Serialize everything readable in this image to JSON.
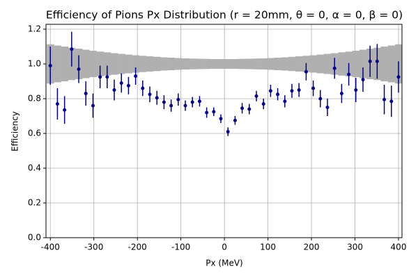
{
  "chart_data": {
    "type": "errorbar",
    "title": "Efficiency of Pions Px Distribution (r = 20mm, θ = 0, α = 0, β = 0)",
    "xlabel": "Px (MeV)",
    "ylabel": "Efficiency",
    "x": [
      -400,
      -383.7,
      -367.3,
      -351,
      -334.7,
      -318.4,
      -302,
      -285.7,
      -269.4,
      -253.1,
      -236.7,
      -220.4,
      -204.1,
      -187.8,
      -171.4,
      -155.1,
      -138.8,
      -122.4,
      -106.1,
      -89.8,
      -73.5,
      -57.1,
      -40.8,
      -24.5,
      -8.2,
      8.2,
      24.5,
      40.8,
      57.1,
      73.5,
      89.8,
      106.1,
      122.4,
      138.8,
      155.1,
      171.4,
      187.8,
      204.1,
      220.4,
      236.7,
      253.1,
      269.4,
      285.7,
      302,
      318.4,
      334.7,
      351,
      367.3,
      383.7,
      400
    ],
    "values": [
      0.99,
      0.77,
      0.735,
      1.085,
      0.97,
      0.83,
      0.76,
      0.925,
      0.925,
      0.85,
      0.89,
      0.875,
      0.93,
      0.86,
      0.825,
      0.805,
      0.78,
      0.76,
      0.795,
      0.76,
      0.78,
      0.785,
      0.72,
      0.725,
      0.685,
      0.61,
      0.675,
      0.745,
      0.74,
      0.815,
      0.77,
      0.845,
      0.825,
      0.785,
      0.845,
      0.85,
      0.955,
      0.86,
      0.8,
      0.75,
      0.975,
      0.83,
      0.94,
      0.85,
      0.91,
      1.015,
      1.015,
      0.795,
      0.785,
      0.925
    ],
    "errors": [
      0.11,
      0.09,
      0.08,
      0.1,
      0.08,
      0.07,
      0.07,
      0.065,
      0.065,
      0.06,
      0.055,
      0.05,
      0.05,
      0.045,
      0.045,
      0.04,
      0.04,
      0.035,
      0.035,
      0.03,
      0.03,
      0.03,
      0.03,
      0.025,
      0.025,
      0.025,
      0.025,
      0.03,
      0.03,
      0.03,
      0.03,
      0.035,
      0.035,
      0.035,
      0.04,
      0.04,
      0.05,
      0.045,
      0.05,
      0.05,
      0.06,
      0.055,
      0.065,
      0.07,
      0.07,
      0.09,
      0.1,
      0.085,
      0.09,
      0.09
    ],
    "color": "#00008b",
    "band": {
      "color": "#b0b0b0",
      "upper": [
        1.113,
        1.106,
        1.1,
        1.093,
        1.088,
        1.082,
        1.076,
        1.071,
        1.067,
        1.062,
        1.058,
        1.054,
        1.05,
        1.047,
        1.044,
        1.041,
        1.038,
        1.036,
        1.034,
        1.032,
        1.031,
        1.03,
        1.029,
        1.028,
        1.028,
        1.028,
        1.028,
        1.029,
        1.03,
        1.031,
        1.032,
        1.034,
        1.036,
        1.038,
        1.041,
        1.044,
        1.047,
        1.05,
        1.054,
        1.058,
        1.062,
        1.067,
        1.071,
        1.076,
        1.082,
        1.088,
        1.093,
        1.1,
        1.106,
        1.113
      ],
      "lower": [
        0.887,
        0.894,
        0.9,
        0.907,
        0.912,
        0.918,
        0.924,
        0.929,
        0.933,
        0.938,
        0.942,
        0.946,
        0.95,
        0.953,
        0.956,
        0.959,
        0.962,
        0.964,
        0.966,
        0.968,
        0.969,
        0.97,
        0.971,
        0.972,
        0.972,
        0.972,
        0.972,
        0.971,
        0.97,
        0.969,
        0.968,
        0.966,
        0.964,
        0.962,
        0.959,
        0.956,
        0.953,
        0.95,
        0.946,
        0.942,
        0.938,
        0.933,
        0.929,
        0.924,
        0.918,
        0.912,
        0.907,
        0.9,
        0.894,
        0.887
      ]
    },
    "xlim": [
      -410,
      408
    ],
    "ylim": [
      0,
      1.228
    ],
    "xticks": [
      -400,
      -300,
      -200,
      -100,
      0,
      100,
      200,
      300,
      400
    ],
    "yticks": [
      {
        "value": 0,
        "label": "0.0"
      },
      0.2,
      0.4,
      0.6,
      0.8,
      {
        "value": 1,
        "label": "1.0"
      },
      1.2
    ],
    "grid": true
  }
}
